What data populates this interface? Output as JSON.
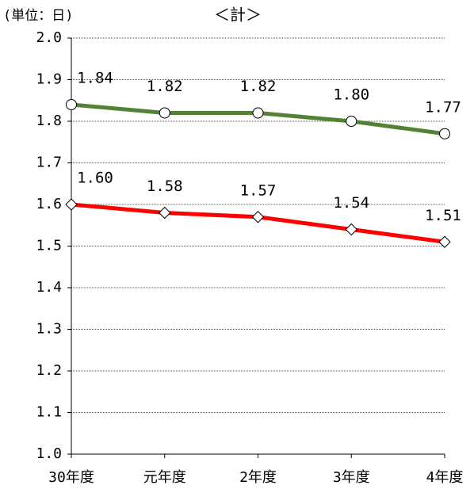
{
  "chart_data": {
    "type": "line",
    "title": "＜計＞",
    "unit_label": "(単位：日)",
    "categories": [
      "30年度",
      "元年度",
      "2年度",
      "3年度",
      "4年度"
    ],
    "series": [
      {
        "color": "#538135",
        "marker": "circle",
        "values": [
          1.84,
          1.82,
          1.82,
          1.8,
          1.77
        ],
        "value_labels": [
          "1.84",
          "1.82",
          "1.82",
          "1.80",
          "1.77"
        ]
      },
      {
        "color": "#ff0000",
        "marker": "diamond",
        "values": [
          1.6,
          1.58,
          1.57,
          1.54,
          1.51
        ],
        "value_labels": [
          "1.60",
          "1.58",
          "1.57",
          "1.54",
          "1.51"
        ]
      }
    ],
    "ylim": [
      1.0,
      2.0
    ],
    "yticks": [
      {
        "value": 1.0,
        "label": "1.0"
      },
      1.1,
      1.2,
      1.3,
      1.4,
      1.5,
      1.6,
      1.7,
      1.8,
      1.9,
      {
        "value": 2.0,
        "label": "2.0"
      }
    ],
    "grid": true
  }
}
